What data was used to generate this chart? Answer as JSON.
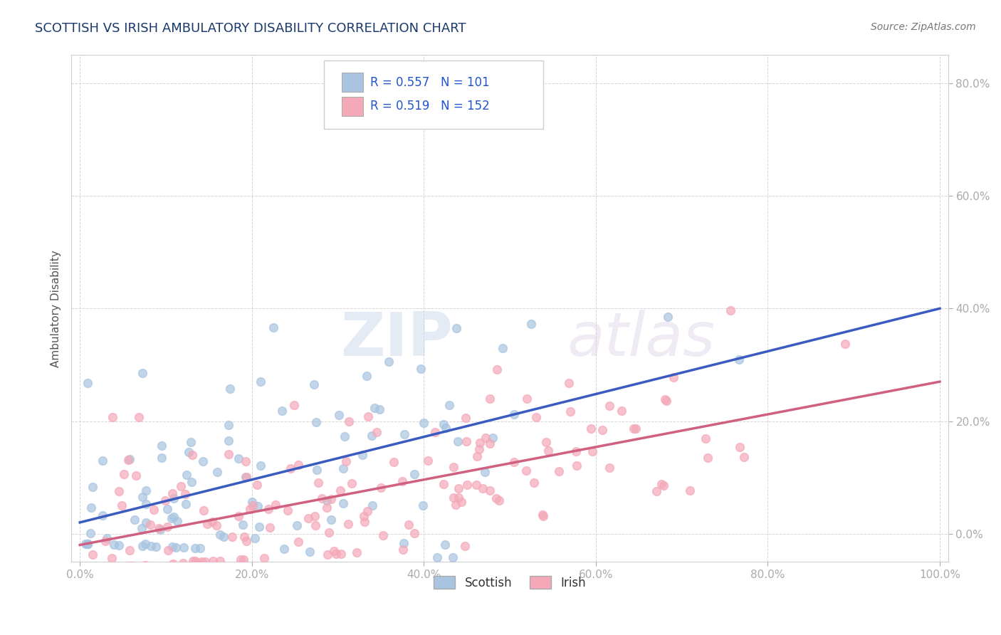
{
  "title": "SCOTTISH VS IRISH AMBULATORY DISABILITY CORRELATION CHART",
  "source": "Source: ZipAtlas.com",
  "ylabel": "Ambulatory Disability",
  "legend_bottom": [
    "Scottish",
    "Irish"
  ],
  "scottish_R": 0.557,
  "scottish_N": 101,
  "irish_R": 0.519,
  "irish_N": 152,
  "scottish_color": "#a8c4e0",
  "irish_color": "#f4a8b8",
  "scottish_line_color": "#3a5bbf",
  "irish_line_color": "#d06080",
  "title_color": "#1a3a6b",
  "source_color": "#777777",
  "legend_text_color": "#2255cc",
  "background_color": "#ffffff",
  "grid_color": "#cccccc",
  "xlim": [
    -0.01,
    1.01
  ],
  "ylim": [
    -0.05,
    0.85
  ],
  "x_ticks": [
    0.0,
    0.2,
    0.4,
    0.6,
    0.8,
    1.0
  ],
  "x_tick_labels": [
    "0.0%",
    "20.0%",
    "40.0%",
    "60.0%",
    "80.0%",
    "100.0%"
  ],
  "y_ticks": [
    0.0,
    0.2,
    0.4,
    0.6,
    0.8
  ],
  "y_tick_labels": [
    "0.0%",
    "20.0%",
    "40.0%",
    "60.0%",
    "80.0%"
  ],
  "watermark": "ZIPAtlas"
}
